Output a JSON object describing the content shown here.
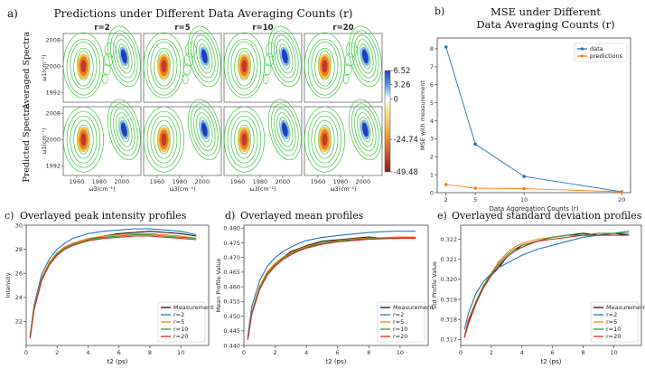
{
  "panels": {
    "a": {
      "letter": "a)",
      "title": "Predictions under Different Data Averaging Counts (r)",
      "columns": [
        "r=2",
        "r=5",
        "r=10",
        "r=20"
      ],
      "rows": [
        "Averaged Spectra",
        "Predicted Spectra"
      ],
      "ylabel": "ω1(cm⁻¹)",
      "xlabel": "ω3(cm⁻¹)",
      "yticks": [
        "2008",
        "2000",
        "1992"
      ],
      "xticks": [
        "1960",
        "1980",
        "2000"
      ],
      "colorbar_ticks": [
        "6.52",
        "3.26",
        "0",
        "-24.74",
        "-49.48"
      ],
      "colors": {
        "negative": "#c0392b",
        "positive": "#1f3fbf",
        "contour": "#3cc43c"
      }
    },
    "b": {
      "letter": "b)",
      "title_line1": "MSE under Different",
      "title_line2": "Data Averaging Counts (r)"
    },
    "c": {
      "letter": "c)",
      "title": "Overlayed peak intensity profiles"
    },
    "d": {
      "letter": "d)",
      "title": "Overlayed mean profiles"
    },
    "e": {
      "letter": "e)",
      "title": "Overlayed standard deviation profiles"
    }
  },
  "chart_data": [
    {
      "id": "b",
      "type": "line",
      "x": [
        2,
        5,
        10,
        20
      ],
      "xticks": [
        2,
        5,
        10,
        20
      ],
      "series": [
        {
          "name": "data",
          "color": "#1f77b4",
          "values": [
            8.1,
            2.7,
            0.9,
            0.05
          ]
        },
        {
          "name": "predictions",
          "color": "#ff7f0e",
          "values": [
            0.45,
            0.25,
            0.22,
            0.05
          ]
        }
      ],
      "xlabel": "Data Aggregation Counts (r)",
      "ylabel": "MSE with measurement",
      "ylim": [
        0,
        8.6
      ],
      "yticks": [
        0,
        1,
        2,
        3,
        4,
        5,
        6,
        7,
        8
      ],
      "legend": "top-right"
    },
    {
      "id": "c",
      "type": "line",
      "xlabel": "t2 (ps)",
      "ylabel": "Intensity",
      "xlim": [
        0,
        11.8
      ],
      "ylim": [
        20,
        30
      ],
      "xticks": [
        0,
        2,
        4,
        6,
        8,
        10
      ],
      "yticks": [
        22,
        24,
        26,
        28,
        30
      ],
      "x": [
        0.25,
        0.5,
        1,
        1.5,
        2,
        2.5,
        3,
        3.5,
        4,
        5,
        6,
        7,
        8,
        9,
        10,
        11
      ],
      "series": [
        {
          "name": "Measurement",
          "color": "#111111",
          "values": [
            20.6,
            23.0,
            25.5,
            26.9,
            27.7,
            28.1,
            28.4,
            28.6,
            28.8,
            29.1,
            29.3,
            29.4,
            29.5,
            29.4,
            29.3,
            29.1
          ]
        },
        {
          "name": "r=2",
          "color": "#1f77b4",
          "values": [
            20.8,
            23.3,
            25.9,
            27.2,
            28.0,
            28.5,
            28.9,
            29.1,
            29.3,
            29.5,
            29.6,
            29.7,
            29.7,
            29.6,
            29.5,
            29.2
          ]
        },
        {
          "name": "r=5",
          "color": "#ff7f0e",
          "values": [
            20.7,
            23.1,
            25.6,
            26.9,
            27.7,
            28.2,
            28.5,
            28.7,
            28.9,
            29.1,
            29.2,
            29.3,
            29.3,
            29.2,
            29.1,
            28.9
          ]
        },
        {
          "name": "r=10",
          "color": "#2ca02c",
          "values": [
            20.7,
            23.0,
            25.5,
            26.8,
            27.6,
            28.1,
            28.4,
            28.6,
            28.8,
            29.0,
            29.1,
            29.2,
            29.2,
            29.1,
            29.0,
            28.9
          ]
        },
        {
          "name": "r=20",
          "color": "#d62728",
          "values": [
            20.6,
            22.9,
            25.4,
            26.7,
            27.5,
            28.0,
            28.3,
            28.5,
            28.7,
            28.9,
            29.0,
            29.1,
            29.1,
            29.0,
            28.9,
            28.8
          ]
        }
      ],
      "legend": "bottom-right"
    },
    {
      "id": "d",
      "type": "line",
      "xlabel": "t2 (ps)",
      "ylabel": "Mean Profile Value",
      "xlim": [
        0,
        11.8
      ],
      "ylim": [
        0.44,
        0.481
      ],
      "xticks": [
        0,
        2,
        4,
        6,
        8,
        10
      ],
      "yticks": [
        0.44,
        0.445,
        0.45,
        0.455,
        0.46,
        0.465,
        0.47,
        0.475,
        0.48
      ],
      "ytick_labels": [
        "0.440",
        "0.445",
        "0.450",
        "0.455",
        "0.460",
        "0.465",
        "0.470",
        "0.475",
        "0.480"
      ],
      "x": [
        0.25,
        0.5,
        1,
        1.5,
        2,
        2.5,
        3,
        3.5,
        4,
        5,
        6,
        7,
        8,
        9,
        10,
        11
      ],
      "series": [
        {
          "name": "Measurement",
          "color": "#111111",
          "values": [
            0.442,
            0.451,
            0.46,
            0.465,
            0.468,
            0.47,
            0.472,
            0.473,
            0.474,
            0.4755,
            0.476,
            0.4765,
            0.477,
            0.4765,
            0.477,
            0.4765
          ]
        },
        {
          "name": "r=2",
          "color": "#1f77b4",
          "values": [
            0.443,
            0.453,
            0.462,
            0.467,
            0.47,
            0.472,
            0.4735,
            0.4748,
            0.4758,
            0.4768,
            0.4775,
            0.478,
            0.4785,
            0.4788,
            0.479,
            0.479
          ]
        },
        {
          "name": "r=5",
          "color": "#ff7f0e",
          "values": [
            0.442,
            0.451,
            0.46,
            0.465,
            0.468,
            0.47,
            0.4715,
            0.4728,
            0.4738,
            0.475,
            0.4758,
            0.4763,
            0.4766,
            0.4768,
            0.477,
            0.477
          ]
        },
        {
          "name": "r=10",
          "color": "#2ca02c",
          "values": [
            0.442,
            0.451,
            0.4595,
            0.4645,
            0.4675,
            0.4697,
            0.4712,
            0.4725,
            0.4735,
            0.4748,
            0.4756,
            0.4761,
            0.4764,
            0.4766,
            0.4767,
            0.4767
          ]
        },
        {
          "name": "r=20",
          "color": "#d62728",
          "values": [
            0.442,
            0.4505,
            0.459,
            0.464,
            0.467,
            0.4693,
            0.4709,
            0.4722,
            0.4732,
            0.4745,
            0.4753,
            0.4758,
            0.4762,
            0.4764,
            0.4765,
            0.4765
          ]
        }
      ],
      "legend": "bottom-right"
    },
    {
      "id": "e",
      "type": "line",
      "xlabel": "t2 (ps)",
      "ylabel": "Std Profile Value",
      "xlim": [
        0,
        11.8
      ],
      "ylim": [
        0.3167,
        0.3227
      ],
      "xticks": [
        0,
        2,
        4,
        6,
        8,
        10
      ],
      "yticks": [
        0.317,
        0.318,
        0.319,
        0.32,
        0.321,
        0.322
      ],
      "ytick_labels": [
        "0.317",
        "0.318",
        "0.319",
        "0.320",
        "0.321",
        "0.322"
      ],
      "x": [
        0.25,
        0.5,
        1,
        1.5,
        2,
        2.5,
        3,
        3.5,
        4,
        5,
        6,
        7,
        8,
        9,
        10,
        11
      ],
      "series": [
        {
          "name": "Measurement",
          "color": "#111111",
          "values": [
            0.3171,
            0.3178,
            0.3188,
            0.3196,
            0.3202,
            0.3206,
            0.3211,
            0.3214,
            0.3217,
            0.3219,
            0.3221,
            0.3222,
            0.3223,
            0.3222,
            0.3223,
            0.3222
          ]
        },
        {
          "name": "r=2",
          "color": "#1f77b4",
          "values": [
            0.3175,
            0.3183,
            0.3193,
            0.3199,
            0.3203,
            0.3206,
            0.3208,
            0.321,
            0.3212,
            0.3215,
            0.3217,
            0.3219,
            0.3221,
            0.3222,
            0.3223,
            0.3224
          ]
        },
        {
          "name": "r=5",
          "color": "#ff7f0e",
          "values": [
            0.3172,
            0.318,
            0.3189,
            0.3197,
            0.3203,
            0.3209,
            0.3213,
            0.3216,
            0.3218,
            0.322,
            0.3221,
            0.3222,
            0.3222,
            0.3222,
            0.3222,
            0.3222
          ]
        },
        {
          "name": "r=10",
          "color": "#2ca02c",
          "values": [
            0.3171,
            0.3179,
            0.3189,
            0.3197,
            0.3203,
            0.3208,
            0.3212,
            0.3215,
            0.3217,
            0.3219,
            0.3221,
            0.3222,
            0.3222,
            0.3223,
            0.3223,
            0.3223
          ]
        },
        {
          "name": "r=20",
          "color": "#d62728",
          "values": [
            0.3171,
            0.3179,
            0.3188,
            0.3196,
            0.3202,
            0.3207,
            0.3211,
            0.3214,
            0.3216,
            0.3219,
            0.322,
            0.3221,
            0.3222,
            0.3222,
            0.3222,
            0.3222
          ]
        }
      ],
      "legend": "bottom-right"
    }
  ]
}
